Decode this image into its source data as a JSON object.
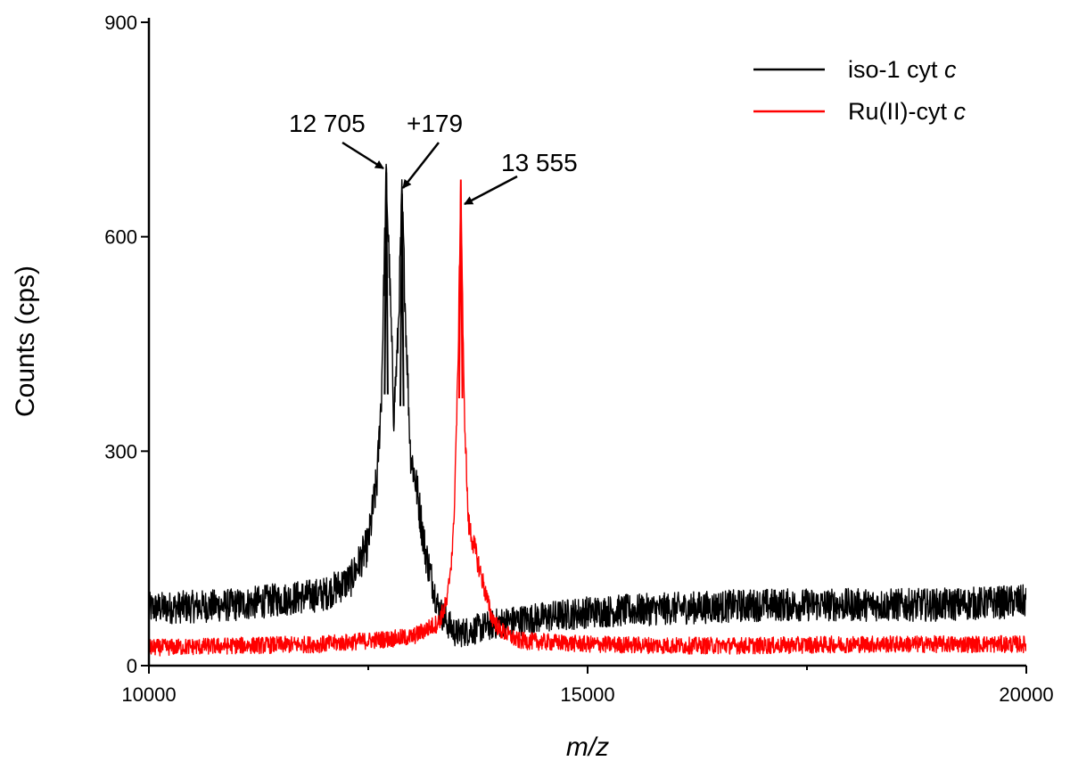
{
  "chart_data": {
    "type": "line",
    "xlabel_prefix": "",
    "xlabel": "m/z",
    "ylabel": "Counts (cps)",
    "xlim": [
      10000,
      20000
    ],
    "ylim": [
      0,
      900
    ],
    "x_ticks": [
      10000,
      15000,
      20000
    ],
    "x_tick_labels": [
      "10000",
      "15000",
      "20000"
    ],
    "x_minor_ticks": [
      12500,
      17500
    ],
    "y_ticks": [
      0,
      300,
      600,
      900
    ],
    "y_tick_labels": [
      "0",
      "300",
      "600",
      "900"
    ],
    "grid": false,
    "legend_position": "top-right",
    "series": [
      {
        "name": "iso-1 cyt c",
        "name_plain": "iso-1 cyt ",
        "name_italic": "c",
        "color": "#000000",
        "baseline": 85,
        "noise": 30,
        "peaks": [
          {
            "x": 12705,
            "y": 690
          },
          {
            "x": 12884,
            "y": 660
          }
        ],
        "x": [
          10000,
          11000,
          12000,
          12300,
          12500,
          12600,
          12650,
          12705,
          12760,
          12790,
          12840,
          12884,
          12930,
          12980,
          13050,
          13150,
          13300,
          13400,
          13500,
          13700,
          14000,
          15000,
          16000,
          17000,
          18000,
          19000,
          20000
        ],
        "y": [
          80,
          85,
          100,
          120,
          170,
          260,
          380,
          690,
          480,
          350,
          460,
          660,
          470,
          300,
          250,
          160,
          80,
          60,
          45,
          50,
          60,
          75,
          80,
          85,
          85,
          85,
          90
        ]
      },
      {
        "name": "Ru(II)-cyt c",
        "name_plain": "Ru(II)-cyt ",
        "name_italic": "c",
        "color": "#ff0000",
        "baseline": 28,
        "noise": 18,
        "peaks": [
          {
            "x": 13555,
            "y": 680
          }
        ],
        "x": [
          10000,
          11000,
          12000,
          13000,
          13300,
          13400,
          13470,
          13520,
          13555,
          13590,
          13640,
          13700,
          13800,
          13900,
          14000,
          14200,
          15000,
          16000,
          17000,
          18000,
          19000,
          20000
        ],
        "y": [
          25,
          28,
          30,
          40,
          60,
          90,
          180,
          400,
          680,
          380,
          200,
          170,
          120,
          70,
          50,
          35,
          30,
          28,
          28,
          30,
          30,
          30
        ]
      }
    ],
    "annotations": [
      {
        "text": "12 705",
        "target_x": 12705,
        "target_y": 690
      },
      {
        "text": "+179",
        "target_x": 12884,
        "target_y": 660
      },
      {
        "text": "13 555",
        "target_x": 13555,
        "target_y": 680
      }
    ]
  }
}
